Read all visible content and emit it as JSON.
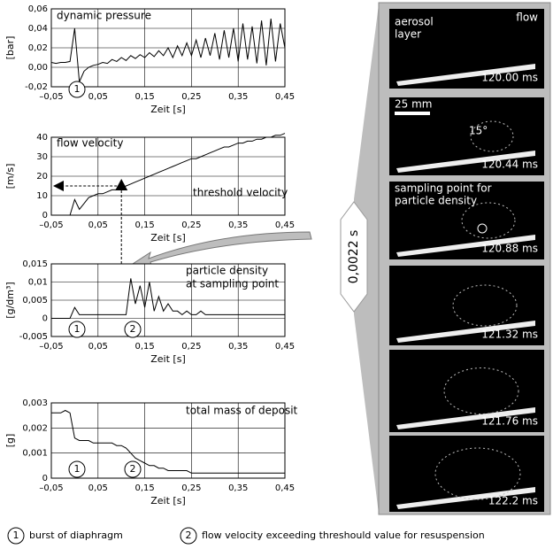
{
  "chart_data": [
    {
      "type": "line",
      "title": "dynamic pressure",
      "y_label": "[bar]",
      "x_label": "Zeit [s]",
      "color": "#000000",
      "grid": true,
      "xlim": [
        -0.05,
        0.45
      ],
      "xticks": [
        {
          "value": -0.05,
          "label": "–0,05"
        },
        {
          "value": 0.05,
          "label": "0,05"
        },
        {
          "value": 0.15,
          "label": "0,15"
        },
        {
          "value": 0.25,
          "label": "0,25"
        },
        {
          "value": 0.35,
          "label": "0,35"
        },
        {
          "value": 0.45,
          "label": "0,45"
        }
      ],
      "ylim": [
        -0.02,
        0.06
      ],
      "yticks": [
        {
          "value": -0.02,
          "label": "-0,02"
        },
        {
          "value": 0,
          "label": "0,00"
        },
        {
          "value": 0.02,
          "label": "0,02"
        },
        {
          "value": 0.04,
          "label": "0,04"
        },
        {
          "value": 0.06,
          "label": "0,06"
        }
      ],
      "x": [
        -0.05,
        -0.04,
        -0.03,
        -0.02,
        -0.01,
        0,
        0.01,
        0.02,
        0.03,
        0.04,
        0.05,
        0.06,
        0.07,
        0.08,
        0.09,
        0.1,
        0.11,
        0.12,
        0.13,
        0.14,
        0.15,
        0.16,
        0.17,
        0.18,
        0.19,
        0.2,
        0.21,
        0.22,
        0.23,
        0.24,
        0.25,
        0.26,
        0.27,
        0.28,
        0.29,
        0.3,
        0.31,
        0.32,
        0.33,
        0.34,
        0.35,
        0.36,
        0.37,
        0.38,
        0.39,
        0.4,
        0.41,
        0.42,
        0.43,
        0.44,
        0.45
      ],
      "values": [
        0.005,
        0.004,
        0.005,
        0.005,
        0.006,
        0.04,
        -0.015,
        -0.004,
        0.0,
        0.002,
        0.003,
        0.005,
        0.004,
        0.008,
        0.006,
        0.01,
        0.007,
        0.012,
        0.009,
        0.013,
        0.01,
        0.015,
        0.011,
        0.017,
        0.012,
        0.02,
        0.01,
        0.022,
        0.012,
        0.025,
        0.012,
        0.028,
        0.01,
        0.03,
        0.012,
        0.035,
        0.008,
        0.038,
        0.01,
        0.04,
        0.006,
        0.045,
        0.008,
        0.042,
        0.004,
        0.048,
        0.002,
        0.05,
        0.006,
        0.045,
        0.02
      ],
      "annotations": [
        {
          "text": "1"
        }
      ]
    },
    {
      "type": "line",
      "title": "flow velocity",
      "y_label": "[m/s]",
      "x_label": "Zeit [s]",
      "color": "#000000",
      "grid": true,
      "xlim": [
        -0.05,
        0.45
      ],
      "xticks": [
        {
          "value": -0.05,
          "label": "–0,05"
        },
        {
          "value": 0.05,
          "label": "0,05"
        },
        {
          "value": 0.15,
          "label": "0,15"
        },
        {
          "value": 0.25,
          "label": "0,25"
        },
        {
          "value": 0.35,
          "label": "0,35"
        },
        {
          "value": 0.45,
          "label": "0,45"
        }
      ],
      "ylim": [
        0,
        40
      ],
      "yticks": [
        0,
        10,
        20,
        30,
        40
      ],
      "x": [
        -0.05,
        -0.04,
        -0.03,
        -0.02,
        -0.01,
        0,
        0.01,
        0.02,
        0.03,
        0.04,
        0.05,
        0.06,
        0.07,
        0.08,
        0.09,
        0.1,
        0.11,
        0.12,
        0.13,
        0.14,
        0.15,
        0.16,
        0.17,
        0.18,
        0.19,
        0.2,
        0.21,
        0.22,
        0.23,
        0.24,
        0.25,
        0.26,
        0.27,
        0.28,
        0.29,
        0.3,
        0.31,
        0.32,
        0.33,
        0.34,
        0.35,
        0.36,
        0.37,
        0.38,
        0.39,
        0.4,
        0.41,
        0.42,
        0.43,
        0.44,
        0.45
      ],
      "values": [
        0,
        0,
        0,
        0,
        0,
        8,
        3,
        6,
        9,
        10,
        11,
        11,
        12,
        13,
        13,
        14,
        15,
        16,
        17,
        18,
        19,
        20,
        21,
        22,
        23,
        24,
        25,
        26,
        27,
        28,
        29,
        29,
        30,
        31,
        32,
        33,
        34,
        35,
        35,
        36,
        37,
        37,
        38,
        38,
        39,
        39,
        40,
        40,
        41,
        41,
        42
      ],
      "annotations": [
        {
          "text": "threshold velocity"
        }
      ]
    },
    {
      "type": "line",
      "title": "particle density",
      "subtitle": "at sampling point",
      "y_label": "[g/dm³]",
      "x_label": "Zeit [s]",
      "color": "#000000",
      "grid": true,
      "xlim": [
        -0.05,
        0.45
      ],
      "xticks": [
        {
          "value": -0.05,
          "label": "–0,05"
        },
        {
          "value": 0.05,
          "label": "0,05"
        },
        {
          "value": 0.15,
          "label": "0,15"
        },
        {
          "value": 0.25,
          "label": "0,25"
        },
        {
          "value": 0.35,
          "label": "0,35"
        },
        {
          "value": 0.45,
          "label": "0,45"
        }
      ],
      "ylim": [
        -0.005,
        0.015
      ],
      "yticks": [
        {
          "value": -0.005,
          "label": "-0,005"
        },
        0,
        {
          "value": 0.005,
          "label": "0,005"
        },
        {
          "value": 0.01,
          "label": "0,01"
        },
        {
          "value": 0.015,
          "label": "0,015"
        }
      ],
      "x": [
        -0.05,
        -0.04,
        -0.03,
        -0.02,
        -0.01,
        0,
        0.01,
        0.02,
        0.03,
        0.04,
        0.05,
        0.06,
        0.07,
        0.08,
        0.09,
        0.1,
        0.11,
        0.12,
        0.13,
        0.14,
        0.15,
        0.16,
        0.17,
        0.18,
        0.19,
        0.2,
        0.21,
        0.22,
        0.23,
        0.24,
        0.25,
        0.26,
        0.27,
        0.28,
        0.29,
        0.3,
        0.31,
        0.32,
        0.33,
        0.34,
        0.35,
        0.36,
        0.37,
        0.38,
        0.39,
        0.4,
        0.41,
        0.42,
        0.43,
        0.44,
        0.45
      ],
      "values": [
        0,
        0,
        0,
        0,
        0,
        0.003,
        0.001,
        0.001,
        0.001,
        0.001,
        0.001,
        0.001,
        0.001,
        0.001,
        0.001,
        0.001,
        0.001,
        0.011,
        0.004,
        0.009,
        0.003,
        0.01,
        0.002,
        0.006,
        0.002,
        0.004,
        0.002,
        0.002,
        0.001,
        0.002,
        0.001,
        0.001,
        0.002,
        0.001,
        0.001,
        0.001,
        0.001,
        0.001,
        0.001,
        0.001,
        0.001,
        0.001,
        0.001,
        0.001,
        0.001,
        0.001,
        0.001,
        0.001,
        0.001,
        0.001,
        0.001
      ],
      "annotations": [
        {
          "text": "1"
        },
        {
          "text": "2"
        }
      ]
    },
    {
      "type": "line",
      "title": "total mass of deposit",
      "y_label": "[g]",
      "x_label": "Zeit [s]",
      "color": "#000000",
      "grid": true,
      "xlim": [
        -0.05,
        0.45
      ],
      "xticks": [
        {
          "value": -0.05,
          "label": "–0,05"
        },
        {
          "value": 0.05,
          "label": "0,05"
        },
        {
          "value": 0.15,
          "label": "0,15"
        },
        {
          "value": 0.25,
          "label": "0,25"
        },
        {
          "value": 0.35,
          "label": "0,35"
        },
        {
          "value": 0.45,
          "label": "0,45"
        }
      ],
      "ylim": [
        0,
        0.003
      ],
      "yticks": [
        0,
        {
          "value": 0.001,
          "label": "0,001"
        },
        {
          "value": 0.002,
          "label": "0,002"
        },
        {
          "value": 0.003,
          "label": "0,003"
        }
      ],
      "x": [
        -0.05,
        -0.04,
        -0.03,
        -0.02,
        -0.01,
        0,
        0.01,
        0.02,
        0.03,
        0.04,
        0.05,
        0.06,
        0.07,
        0.08,
        0.09,
        0.1,
        0.11,
        0.12,
        0.13,
        0.14,
        0.15,
        0.16,
        0.17,
        0.18,
        0.19,
        0.2,
        0.21,
        0.22,
        0.23,
        0.24,
        0.25,
        0.26,
        0.27,
        0.28,
        0.29,
        0.3,
        0.31,
        0.32,
        0.33,
        0.34,
        0.35,
        0.36,
        0.37,
        0.38,
        0.39,
        0.4,
        0.41,
        0.42,
        0.43,
        0.44,
        0.45
      ],
      "values": [
        0.0026,
        0.0026,
        0.0026,
        0.0027,
        0.0026,
        0.0016,
        0.0015,
        0.0015,
        0.0015,
        0.0014,
        0.0014,
        0.0014,
        0.0014,
        0.0014,
        0.0013,
        0.0013,
        0.0012,
        0.001,
        0.0008,
        0.0007,
        0.0006,
        0.0005,
        0.0005,
        0.0004,
        0.0004,
        0.0003,
        0.0003,
        0.0003,
        0.0003,
        0.0003,
        0.0002,
        0.0002,
        0.0002,
        0.0002,
        0.0002,
        0.0002,
        0.0002,
        0.0002,
        0.0002,
        0.0002,
        0.0002,
        0.0002,
        0.0002,
        0.0002,
        0.0002,
        0.0002,
        0.0002,
        0.0002,
        0.0002,
        0.0002,
        0.0002
      ],
      "annotations": [
        {
          "text": "1"
        },
        {
          "text": "2"
        }
      ]
    }
  ],
  "photo_panel": {
    "interval": "0,0022 s",
    "frames": [
      {
        "time": "120.00 ms",
        "notes": [
          "aerosol",
          "layer",
          "flow"
        ]
      },
      {
        "time": "120.44 ms",
        "notes": [
          "25 mm",
          "15°"
        ]
      },
      {
        "time": "120.88 ms",
        "notes": [
          "sampling point for",
          "particle density"
        ]
      },
      {
        "time": "121.32 ms",
        "notes": []
      },
      {
        "time": "121.76 ms",
        "notes": []
      },
      {
        "time": "122.2 ms",
        "notes": []
      }
    ]
  },
  "notes": [
    {
      "marker": "1",
      "text": "burst of diaphragm"
    },
    {
      "marker": "2",
      "text": "flow velocity exceeding threshould value for resuspension"
    }
  ]
}
